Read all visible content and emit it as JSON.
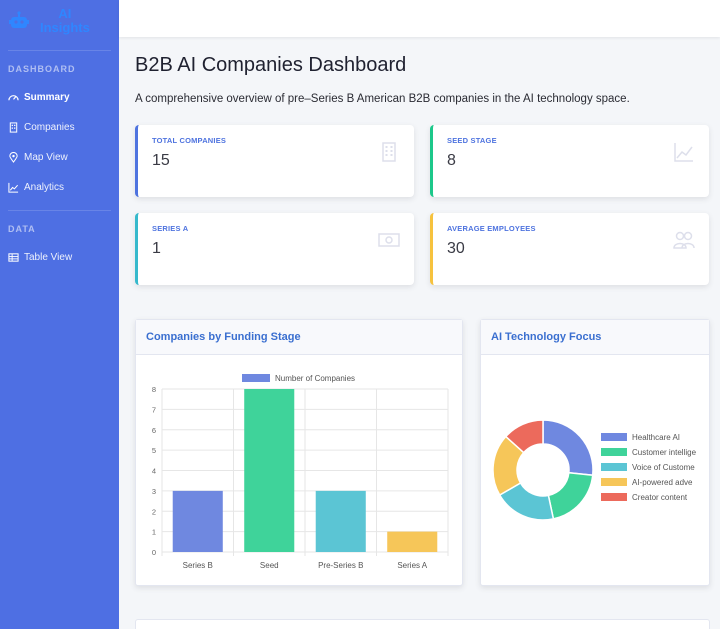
{
  "brand": {
    "line1": "AI",
    "line2": "Insights"
  },
  "sidebar": {
    "section1": "DASHBOARD",
    "items1": [
      {
        "label": "Summary",
        "icon": "gauge-icon",
        "active": true
      },
      {
        "label": "Companies",
        "icon": "building-icon"
      },
      {
        "label": "Map View",
        "icon": "map-pin-icon"
      },
      {
        "label": "Analytics",
        "icon": "chart-line-icon"
      }
    ],
    "section2": "DATA",
    "items2": [
      {
        "label": "Table View",
        "icon": "table-icon"
      }
    ]
  },
  "page": {
    "title": "B2B AI Companies Dashboard",
    "description": "A comprehensive overview of pre–Series B American B2B companies in the AI technology space."
  },
  "stats": [
    {
      "label": "TOTAL COMPANIES",
      "value": "15",
      "icon": "building-icon"
    },
    {
      "label": "SEED STAGE",
      "value": "8",
      "icon": "chart-line-icon"
    },
    {
      "label": "SERIES A",
      "value": "1",
      "icon": "money-bill-icon"
    },
    {
      "label": "AVERAGE EMPLOYEES",
      "value": "30",
      "icon": "users-icon"
    }
  ],
  "cards": {
    "funding": {
      "title": "Companies by Funding Stage"
    },
    "tech": {
      "title": "AI Technology Focus"
    }
  },
  "colors": {
    "primary": "#4e73df",
    "green": "#1cc88a",
    "teal": "#36b9cc",
    "yellow": "#f6c23e",
    "red": "#e74a3b"
  },
  "chart_data": [
    {
      "type": "bar",
      "legend": [
        "Number of Companies"
      ],
      "categories": [
        "Series B",
        "Seed",
        "Pre-Series B",
        "Series A"
      ],
      "values": [
        3,
        8,
        3,
        1
      ],
      "colors": [
        "#6f88e0",
        "#3fd39a",
        "#5bc5d4",
        "#f6c659"
      ],
      "ylim": [
        0,
        8
      ],
      "yticks": [
        0,
        1,
        2,
        3,
        4,
        5,
        6,
        7,
        8
      ],
      "grid": true,
      "legend_position": "top"
    },
    {
      "type": "pie",
      "style": "doughnut",
      "labels": [
        "Healthcare AI",
        "Customer intellige",
        "Voice of Custome",
        "AI-powered adve",
        "Creator content"
      ],
      "values": [
        4,
        3,
        3,
        3,
        2
      ],
      "colors": [
        "#6f88e0",
        "#3fd39a",
        "#5bc5d4",
        "#f6c659",
        "#ec6a5c"
      ],
      "legend_position": "right"
    }
  ]
}
